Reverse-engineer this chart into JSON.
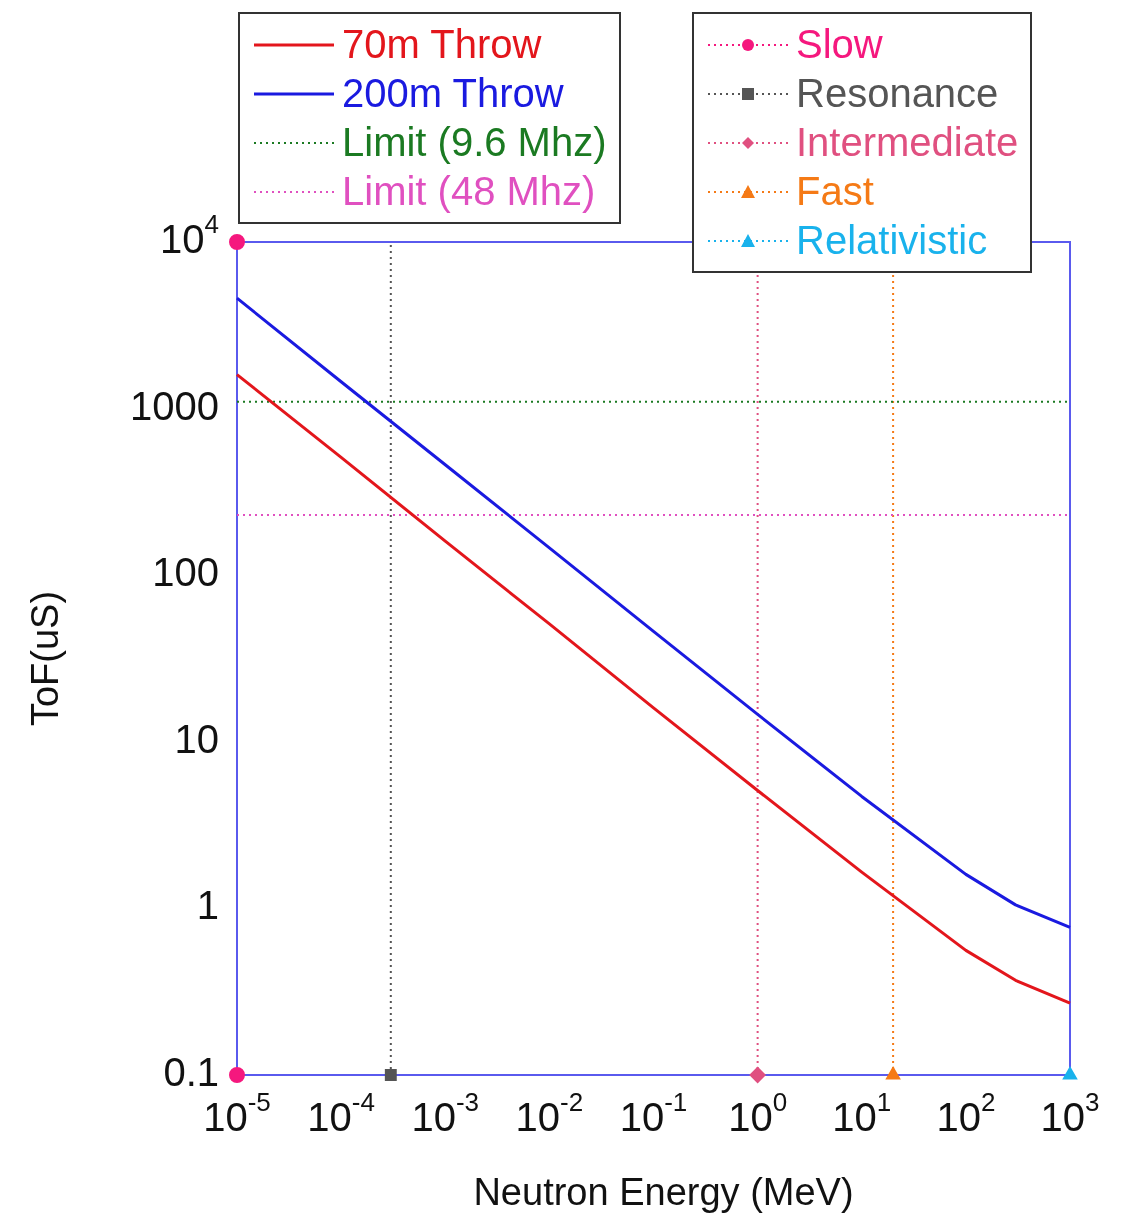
{
  "chart_data": {
    "type": "line",
    "xlabel": "Neutron Energy (MeV)",
    "ylabel": "ToF(uS)",
    "log": "xy",
    "legend": "top",
    "xlim": [
      1e-05,
      1000
    ],
    "ylim": [
      0.1,
      10000
    ],
    "xticks": [
      {
        "value": 1e-05,
        "label": "10$^{-5}$"
      },
      {
        "value": 0.0001,
        "label": "10$^{-4}$"
      },
      {
        "value": 0.001,
        "label": "10$^{-3}$"
      },
      {
        "value": 0.01,
        "label": "10$^{-2}$"
      },
      {
        "value": 0.1,
        "label": "10$^{-1}$"
      },
      {
        "value": 1,
        "label": "10$^{0}$"
      },
      {
        "value": 10,
        "label": "10$^{1}$"
      },
      {
        "value": 100,
        "label": "10$^{2}$"
      },
      {
        "value": 1000,
        "label": "10$^{3}$"
      }
    ],
    "yticks": [
      0.1,
      1,
      10,
      100,
      1000,
      {
        "value": 10000,
        "label": "10$^{4}$"
      }
    ],
    "series": [
      {
        "name": "70m Throw",
        "color": "#e3161c",
        "line_style": "solid",
        "marker": "none",
        "x": [
          1e-05,
          0.0001,
          0.001,
          0.01,
          0.1,
          1,
          10,
          100,
          300,
          1000
        ],
        "values": [
          1600,
          510,
          160,
          51,
          16,
          5.1,
          1.65,
          0.56,
          0.37,
          0.27
        ]
      },
      {
        "name": "200m Throw",
        "color": "#1a1ae0",
        "line_style": "solid",
        "marker": "none",
        "x": [
          1e-05,
          0.0001,
          0.001,
          0.01,
          0.1,
          1,
          10,
          100,
          300,
          1000
        ],
        "values": [
          4600,
          1450,
          460,
          146,
          46,
          14.6,
          4.7,
          1.6,
          1.05,
          0.77
        ]
      },
      {
        "name": "Limit (9.6 Mhz)",
        "color": "#1b7a22",
        "line_style": "dotted",
        "marker": "none",
        "x": [
          1e-05,
          1000
        ],
        "values": [
          1100,
          1100
        ]
      },
      {
        "name": "Limit (48 Mhz)",
        "color": "#e050c0",
        "line_style": "dotted",
        "marker": "none",
        "x": [
          1e-05,
          1000
        ],
        "values": [
          230,
          230
        ]
      },
      {
        "name": "Slow",
        "type": "scatter",
        "color": "#f5187e",
        "line_style": "dotted",
        "marker": "circle",
        "x": [
          1e-05,
          1e-05
        ],
        "values": [
          0.1,
          10000
        ]
      },
      {
        "name": "Resonance",
        "type": "scatter",
        "color": "#555555",
        "line_style": "dotted",
        "marker": "square",
        "x": [
          0.0003
        ],
        "values": [
          0.1
        ]
      },
      {
        "name": "Intermediate",
        "type": "scatter",
        "color": "#e05080",
        "line_style": "dotted",
        "marker": "diamond",
        "x": [
          1
        ],
        "values": [
          0.1
        ]
      },
      {
        "name": "Fast",
        "type": "scatter",
        "color": "#f57a16",
        "line_style": "dotted",
        "marker": "triangle",
        "x": [
          20
        ],
        "values": [
          0.1
        ]
      },
      {
        "name": "Relativistic",
        "type": "scatter",
        "color": "#19b2ec",
        "line_style": "dotted",
        "marker": "triangle",
        "x": [
          1000
        ],
        "values": [
          0.1
        ]
      }
    ],
    "ref_lines": [
      {
        "axis": "x",
        "value": 0.0003,
        "color": "#555555",
        "line_style": "dotted"
      },
      {
        "axis": "x",
        "value": 1,
        "color": "#e05080",
        "line_style": "dotted"
      },
      {
        "axis": "x",
        "value": 20,
        "color": "#f57a16",
        "line_style": "dotted"
      }
    ]
  }
}
